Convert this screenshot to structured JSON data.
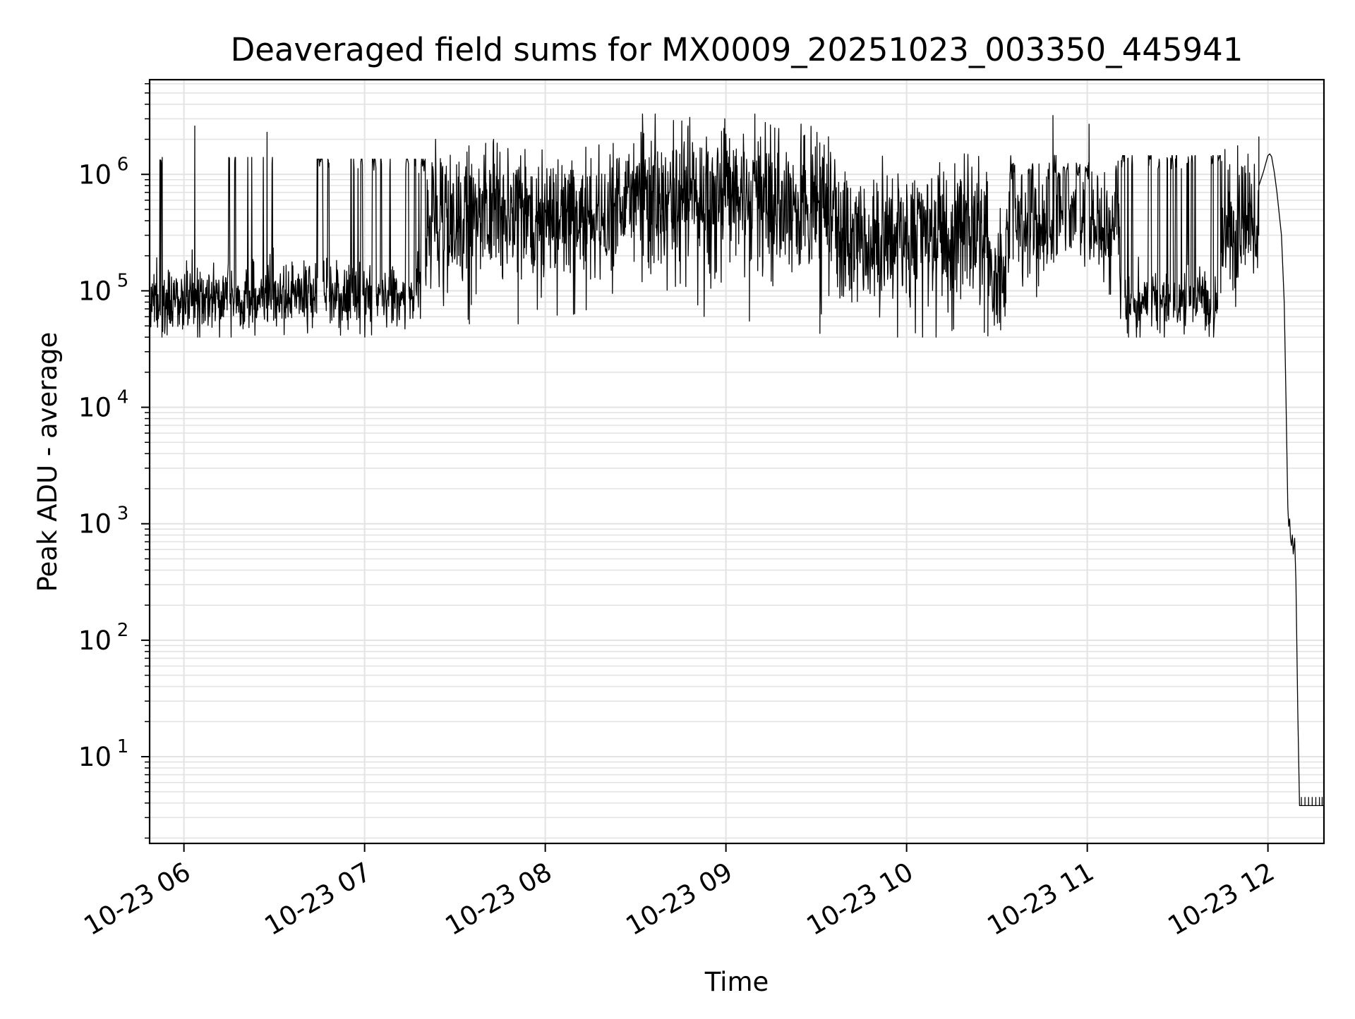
{
  "chart_data": {
    "type": "line",
    "title": "Deaveraged field sums for MX0009_20251023_003350_445941",
    "xlabel": "Time",
    "ylabel": "Peak ADU - average",
    "yscale": "log",
    "ylim": [
      1.8,
      6500000
    ],
    "xlim_hours": [
      5.81,
      12.31
    ],
    "grid": true,
    "line_color": "#000000",
    "grid_color": "#e3e3e3",
    "x_ticks": [
      {
        "hour": 6,
        "label": "10-23 06"
      },
      {
        "hour": 7,
        "label": "10-23 07"
      },
      {
        "hour": 8,
        "label": "10-23 08"
      },
      {
        "hour": 9,
        "label": "10-23 09"
      },
      {
        "hour": 10,
        "label": "10-23 10"
      },
      {
        "hour": 11,
        "label": "10-23 11"
      },
      {
        "hour": 12,
        "label": "10-23 12"
      }
    ],
    "y_ticks": [
      {
        "value": 10,
        "base": "10",
        "exp": "1"
      },
      {
        "value": 100,
        "base": "10",
        "exp": "2"
      },
      {
        "value": 1000,
        "base": "10",
        "exp": "3"
      },
      {
        "value": 10000,
        "base": "10",
        "exp": "4"
      },
      {
        "value": 100000,
        "base": "10",
        "exp": "5"
      },
      {
        "value": 1000000,
        "base": "10",
        "exp": "6"
      }
    ],
    "series": [
      {
        "name": "Deaveraged field sum",
        "segments": [
          {
            "t0": 5.81,
            "t1": 6.55,
            "low": 85000,
            "high": 1350000,
            "burst": 0.11,
            "noise": 0.35,
            "cap": 1400000,
            "seed": 11
          },
          {
            "t0": 6.55,
            "t1": 7.34,
            "low": 95000,
            "high": 1300000,
            "burst": 0.17,
            "noise": 0.3,
            "cap": 1350000,
            "seed": 23
          },
          {
            "t0": 7.34,
            "t1": 8.45,
            "low": 380000,
            "high": 950000,
            "burst": 0.0,
            "noise": 0.55,
            "cap": 2000000,
            "seed": 37
          },
          {
            "t0": 8.45,
            "t1": 9.6,
            "low": 550000,
            "high": 1200000,
            "burst": 0.0,
            "noise": 0.62,
            "cap": 3300000,
            "seed": 41
          },
          {
            "t0": 9.6,
            "t1": 10.45,
            "low": 260000,
            "high": 700000,
            "burst": 0.0,
            "noise": 0.58,
            "cap": 1500000,
            "seed": 53
          },
          {
            "t0": 10.45,
            "t1": 10.55,
            "low": 120000,
            "high": 350000,
            "burst": 0.0,
            "noise": 0.48,
            "cap": 900000,
            "seed": 59
          },
          {
            "t0": 10.55,
            "t1": 11.18,
            "low": 350000,
            "high": 1100000,
            "burst": 0.25,
            "noise": 0.5,
            "cap": 3200000,
            "seed": 61
          },
          {
            "t0": 11.18,
            "t1": 11.74,
            "low": 80000,
            "high": 1350000,
            "burst": 0.34,
            "noise": 0.32,
            "cap": 1450000,
            "seed": 67
          },
          {
            "t0": 11.74,
            "t1": 11.95,
            "low": 260000,
            "high": 1200000,
            "burst": 0.0,
            "noise": 0.42,
            "cap": 1900000,
            "seed": 71
          }
        ],
        "spikes": [
          {
            "t": 5.88,
            "value": 1400000
          },
          {
            "t": 6.06,
            "value": 2600000
          },
          {
            "t": 6.46,
            "value": 2300000
          },
          {
            "t": 7.67,
            "value": 1850000
          },
          {
            "t": 8.53,
            "value": 2300000
          },
          {
            "t": 8.79,
            "value": 2600000
          },
          {
            "t": 9.16,
            "value": 3300000
          },
          {
            "t": 9.27,
            "value": 2500000
          },
          {
            "t": 10.81,
            "value": 3200000
          },
          {
            "t": 11.01,
            "value": 2700000
          },
          {
            "t": 11.95,
            "value": 2100000
          }
        ],
        "dips": [
          {
            "t": 7.58,
            "value": 52000
          },
          {
            "t": 7.85,
            "value": 52000
          },
          {
            "t": 9.13,
            "value": 55000
          },
          {
            "t": 9.52,
            "value": 43000
          },
          {
            "t": 10.43,
            "value": 44000
          },
          {
            "t": 10.45,
            "value": 41000
          }
        ],
        "tail": [
          {
            "t": 11.95,
            "value": 800000
          },
          {
            "t": 11.975,
            "value": 1050000
          },
          {
            "t": 12.0,
            "value": 1450000
          },
          {
            "t": 12.01,
            "value": 1500000
          },
          {
            "t": 12.02,
            "value": 1420000
          },
          {
            "t": 12.035,
            "value": 1050000
          },
          {
            "t": 12.05,
            "value": 700000
          },
          {
            "t": 12.075,
            "value": 300000
          },
          {
            "t": 12.09,
            "value": 80000
          },
          {
            "t": 12.1,
            "value": 12000
          },
          {
            "t": 12.11,
            "value": 1400
          },
          {
            "t": 12.115,
            "value": 950
          },
          {
            "t": 12.12,
            "value": 1100
          },
          {
            "t": 12.125,
            "value": 750
          },
          {
            "t": 12.13,
            "value": 650
          },
          {
            "t": 12.135,
            "value": 800
          },
          {
            "t": 12.14,
            "value": 550
          },
          {
            "t": 12.148,
            "value": 750
          },
          {
            "t": 12.155,
            "value": 320
          },
          {
            "t": 12.165,
            "value": 25
          },
          {
            "t": 12.175,
            "value": 3.8
          },
          {
            "t": 12.31,
            "value": 3.8
          }
        ],
        "floor_ticks": [
          12.185,
          12.205,
          12.225,
          12.245,
          12.265,
          12.285,
          12.3
        ],
        "floor_value": 3.8,
        "floor_tick_value": 4.5
      }
    ]
  }
}
